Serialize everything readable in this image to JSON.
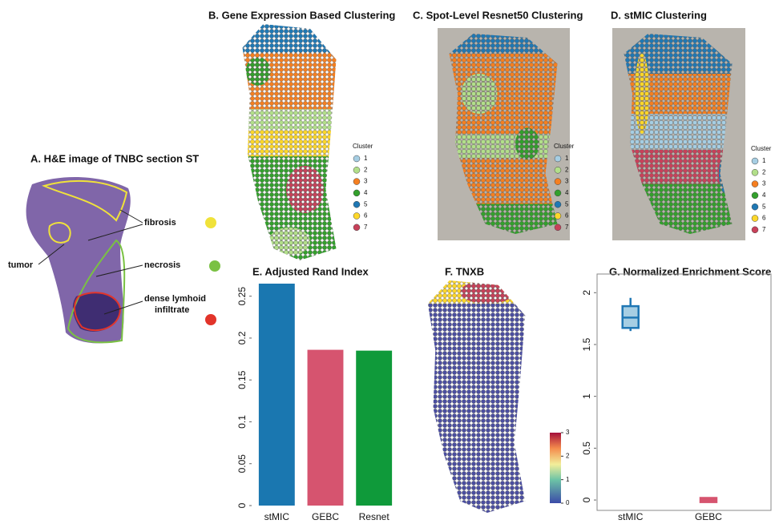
{
  "panel_a": {
    "title": "A. H&E image of TNBC section ST",
    "labels": [
      "fibrosis",
      "tumor",
      "necrosis",
      "dense lymhoid",
      "infiltrate"
    ]
  },
  "clusters": {
    "legend_title": "Cluster",
    "labels": [
      "1",
      "2",
      "3",
      "4",
      "5",
      "6",
      "7"
    ],
    "colors": [
      "#a6cee3",
      "#b2df8a",
      "#f57f20",
      "#33a02c",
      "#1f78b4",
      "#fdd72a",
      "#c8415a"
    ]
  },
  "panel_b": {
    "title": "B. Gene Expression Based Clustering"
  },
  "panel_c": {
    "title": "C. Spot-Level Resnet50 Clustering"
  },
  "panel_d": {
    "title": "D. stMIC Clustering"
  },
  "panel_f": {
    "title": "F. TNXB",
    "colorbar_lim": [
      0,
      3
    ],
    "colorbar_ticks": [
      0,
      1,
      2,
      3
    ]
  },
  "chart_data": [
    {
      "type": "bar",
      "title": "E. Adjusted Rand Index",
      "categories": [
        "stMIC",
        "GEBC",
        "Resnet"
      ],
      "values": [
        0.265,
        0.186,
        0.185
      ],
      "colors": [
        "#1a77b0",
        "#d6546f",
        "#0f9a3a"
      ],
      "ylim": [
        0,
        0.265
      ],
      "yticks": [
        0,
        0.05,
        0.1,
        0.15,
        0.2,
        0.25
      ]
    },
    {
      "type": "box",
      "title": "G. Normalized Enrichment Score",
      "categories": [
        "stMIC",
        "GEBC"
      ],
      "boxes": [
        {
          "min": 1.63,
          "q1": 1.66,
          "median": 1.76,
          "q3": 1.87,
          "max": 1.95
        },
        {
          "min": -0.02,
          "q1": -0.02,
          "median": 0,
          "q3": 0.02,
          "max": 0.02
        }
      ],
      "colors": [
        "#1f77b4",
        "#d6546f"
      ],
      "fill_colors": [
        "#a6cee3",
        "#d6546f"
      ],
      "ylim": [
        -0.1,
        2.18
      ],
      "yticks": [
        0,
        0.5,
        1,
        1.5,
        2
      ]
    }
  ]
}
